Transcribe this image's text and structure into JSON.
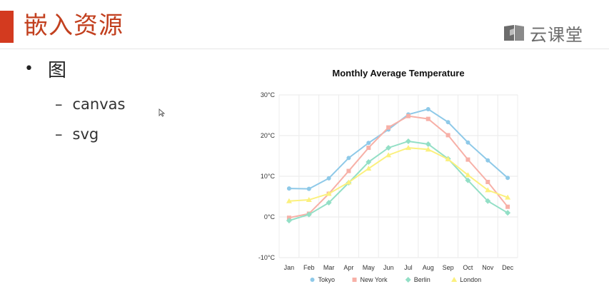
{
  "slide": {
    "title": "嵌入资源",
    "brand": "云课堂",
    "bullet": "图",
    "sub_bullets": [
      "canvas",
      "svg"
    ],
    "dash": "–",
    "dot": "•"
  },
  "colors": {
    "title_bar": "#d33a1f",
    "title_text": "#c2401f",
    "tokyo": "#8ec9e8",
    "new_york": "#f7b0a7",
    "berlin": "#93dfc6",
    "london": "#fbf07e"
  },
  "chart_data": {
    "type": "line",
    "title": "Monthly Average Temperature",
    "categories": [
      "Jan",
      "Feb",
      "Mar",
      "Apr",
      "May",
      "Jun",
      "Jul",
      "Aug",
      "Sep",
      "Oct",
      "Nov",
      "Dec"
    ],
    "y_ticks": [
      "-10°C",
      "0°C",
      "10°C",
      "20°C",
      "30°C"
    ],
    "ylim": [
      -10,
      30
    ],
    "grid": true,
    "legend_position": "bottom-center",
    "series": [
      {
        "name": "Tokyo",
        "marker": "circle",
        "color": "#8ec9e8",
        "values": [
          7.0,
          6.9,
          9.5,
          14.5,
          18.2,
          21.5,
          25.2,
          26.5,
          23.3,
          18.3,
          13.9,
          9.6
        ]
      },
      {
        "name": "New York",
        "marker": "square",
        "color": "#f7b0a7",
        "values": [
          -0.2,
          0.8,
          5.7,
          11.3,
          17.0,
          22.0,
          24.8,
          24.1,
          20.1,
          14.1,
          8.6,
          2.5
        ]
      },
      {
        "name": "Berlin",
        "marker": "diamond",
        "color": "#93dfc6",
        "values": [
          -0.9,
          0.6,
          3.5,
          8.4,
          13.5,
          17.0,
          18.6,
          17.9,
          14.3,
          9.0,
          3.9,
          1.0
        ]
      },
      {
        "name": "London",
        "marker": "triangle",
        "color": "#fbf07e",
        "values": [
          3.9,
          4.2,
          5.7,
          8.5,
          11.9,
          15.2,
          17.0,
          16.6,
          14.2,
          10.3,
          6.6,
          4.8
        ]
      }
    ]
  }
}
